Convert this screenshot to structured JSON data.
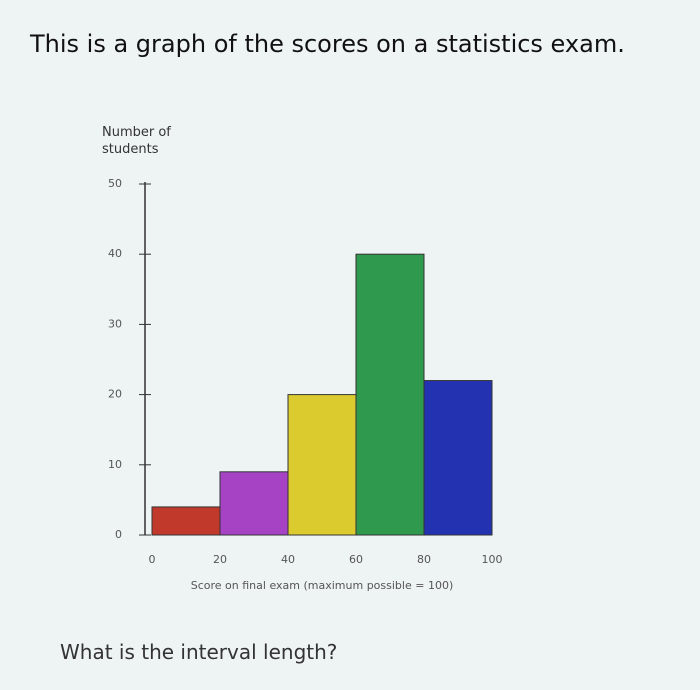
{
  "question": "This is a graph of the scores on a statistics exam.",
  "prompt": "What is the interval length?",
  "chart_data": {
    "type": "histogram",
    "ylabel": "Number of students",
    "xlabel": "Score on final exam (maximum possible = 100)",
    "bins": [
      0,
      20,
      40,
      60,
      80,
      100
    ],
    "counts": [
      4,
      9,
      20,
      40,
      22
    ],
    "colors": [
      "#c0392b",
      "#a543c4",
      "#dccb2e",
      "#2f9a4e",
      "#2232b0"
    ],
    "xlim": [
      0,
      100
    ],
    "xticks": [
      0,
      20,
      40,
      60,
      80,
      100
    ],
    "ylim": [
      0,
      50
    ],
    "yticks": [
      0,
      10,
      20,
      30,
      40,
      50
    ]
  }
}
